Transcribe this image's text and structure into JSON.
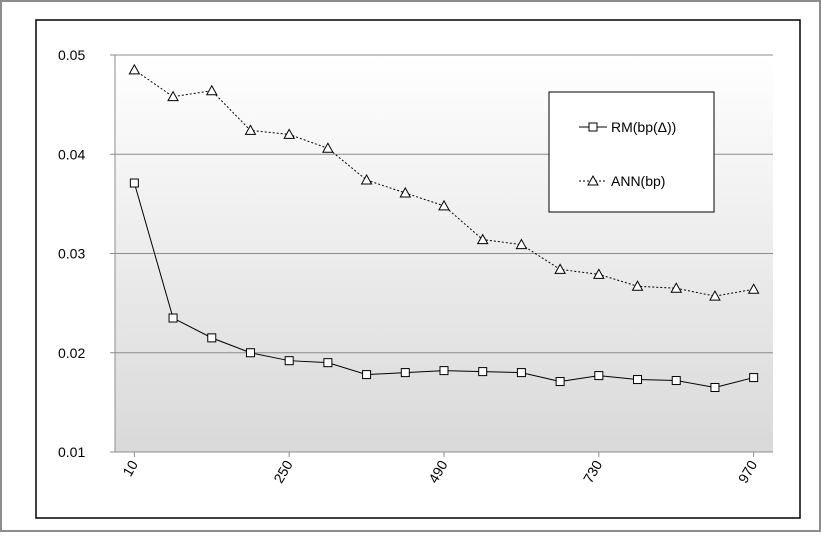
{
  "chart_data": {
    "type": "line",
    "x": [
      10,
      70,
      130,
      190,
      250,
      310,
      370,
      430,
      490,
      550,
      610,
      670,
      730,
      790,
      850,
      910,
      970
    ],
    "series": [
      {
        "name": "RM(bp(Δ))",
        "color": "#000000",
        "line_style": "solid",
        "marker": "square",
        "values": [
          0.0371,
          0.0235,
          0.0215,
          0.02,
          0.0192,
          0.019,
          0.0178,
          0.018,
          0.0182,
          0.0181,
          0.018,
          0.0171,
          0.0177,
          0.0173,
          0.0172,
          0.0165,
          0.0175
        ]
      },
      {
        "name": "ANN(bp)",
        "color": "#000000",
        "line_style": "dotted",
        "marker": "triangle",
        "values": [
          0.0485,
          0.0458,
          0.0464,
          0.0424,
          0.042,
          0.0406,
          0.0374,
          0.0361,
          0.0348,
          0.0314,
          0.0309,
          0.0284,
          0.0279,
          0.0267,
          0.0265,
          0.0257,
          0.0264
        ]
      }
    ],
    "xlim": [
      -20,
      1000
    ],
    "xticks": [
      10,
      250,
      490,
      730,
      970
    ],
    "ylim": [
      0.01,
      0.05
    ],
    "yticks": [
      0.01,
      0.02,
      0.03,
      0.04,
      0.05
    ],
    "grid": true,
    "legend": "upper right"
  }
}
